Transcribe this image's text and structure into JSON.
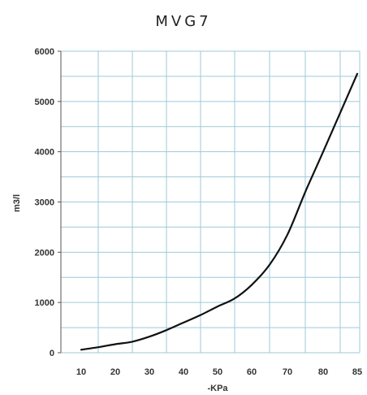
{
  "chart_data": {
    "type": "line",
    "title": "MVG7",
    "xlabel": "-KPa",
    "ylabel": "m3/l",
    "x_ticks": [
      10,
      20,
      30,
      40,
      50,
      60,
      70,
      80,
      85
    ],
    "y_ticks": [
      0,
      1000,
      2000,
      3000,
      4000,
      5000,
      6000
    ],
    "ylim": [
      0,
      6000
    ],
    "grid": true,
    "colors": {
      "line": "#111111",
      "grid": "#9fc9d9",
      "axis": "#555555"
    },
    "series": [
      {
        "x": [
          10,
          15,
          20,
          25,
          30,
          35,
          40,
          45,
          50,
          55,
          60,
          65,
          70,
          75,
          80,
          85
        ],
        "y": [
          60,
          110,
          170,
          220,
          320,
          450,
          600,
          750,
          920,
          1080,
          1350,
          1750,
          2350,
          3200,
          4000,
          5550
        ]
      }
    ]
  }
}
